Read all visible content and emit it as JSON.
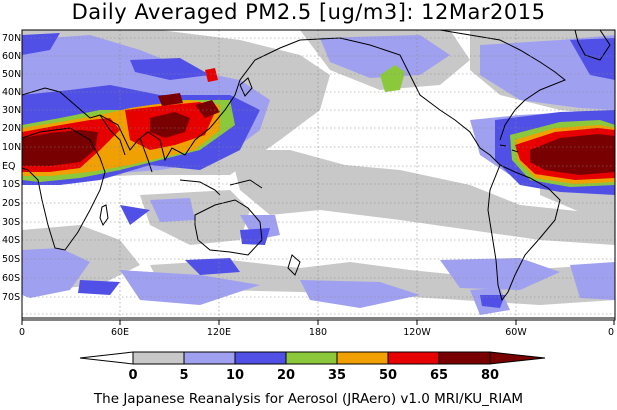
{
  "title": "Daily Averaged PM2.5 [ug/m3]: 12Mar2015",
  "footer": "The Japanese Reanalysis for Aerosol (JRAero) v1.0 MRI/KU_RIAM",
  "lat_labels": [
    "70N",
    "60N",
    "50N",
    "40N",
    "30N",
    "20N",
    "10N",
    "EQ",
    "10S",
    "20S",
    "30S",
    "40S",
    "50S",
    "60S",
    "70S"
  ],
  "lon_labels": [
    "0",
    "60E",
    "120E",
    "180",
    "120W",
    "60W",
    "0"
  ],
  "colorbar": {
    "labels": [
      "0",
      "5",
      "10",
      "20",
      "35",
      "50",
      "65",
      "80"
    ],
    "colors": [
      "#ffffff",
      "#c8c8c8",
      "#a0a0f0",
      "#5050e6",
      "#8cc83c",
      "#f0a000",
      "#e60000",
      "#780000"
    ]
  }
}
